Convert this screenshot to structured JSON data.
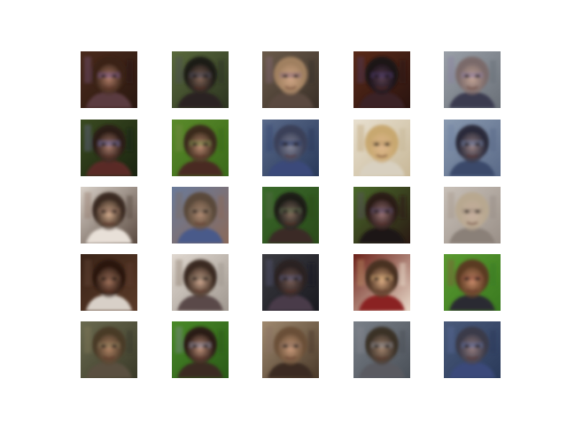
{
  "figure": {
    "background": "#ffffff",
    "grid": {
      "rows": 5,
      "cols": 5
    },
    "tiles": [
      {
        "bg": "#4a2a1c",
        "bg2": "#2a1810",
        "skin": "#b8826c",
        "hair": "#3a2418",
        "shirt": "#5a3a40",
        "accent": "#7a5a8a"
      },
      {
        "bg": "#5a6a3c",
        "bg2": "#2c3420",
        "skin": "#8a6a5a",
        "hair": "#1e1a18",
        "shirt": "#2a2420",
        "accent": "#4a4a5a"
      },
      {
        "bg": "#6a5a4a",
        "bg2": "#3a3028",
        "skin": "#d4a888",
        "hair": "#a08060",
        "shirt": "#5a4a40",
        "accent": "#8a6a7a"
      },
      {
        "bg": "#5a2a18",
        "bg2": "#2a1410",
        "skin": "#5a4050",
        "hair": "#1a1218",
        "shirt": "#3a2028",
        "accent": "#4a3a6a"
      },
      {
        "bg": "#9aa0a8",
        "bg2": "#6a7078",
        "skin": "#c8a898",
        "hair": "#7a6a6a",
        "shirt": "#3a3a50",
        "accent": "#8a7aa0"
      },
      {
        "bg": "#3a4a20",
        "bg2": "#1a2410",
        "skin": "#b08070",
        "hair": "#2a1a14",
        "shirt": "#5a2a28",
        "accent": "#6a6aa0"
      },
      {
        "bg": "#5a8a2a",
        "bg2": "#3a6a1a",
        "skin": "#c49078",
        "hair": "#3a2a1a",
        "shirt": "#4a2a20",
        "accent": "#7a8a4a"
      },
      {
        "bg": "#5a6a8a",
        "bg2": "#2a3a5a",
        "skin": "#8a8a9a",
        "hair": "#3a4058",
        "shirt": "#3a4a7a",
        "accent": "#2a3a6a"
      },
      {
        "bg": "#e8e0d0",
        "bg2": "#c8b898",
        "skin": "#e0b890",
        "hair": "#c8a870",
        "shirt": "#d8d0c0",
        "accent": "#b89868"
      },
      {
        "bg": "#8a9ab0",
        "bg2": "#5a6a88",
        "skin": "#a08888",
        "hair": "#2a2a3a",
        "shirt": "#3a4a6a",
        "accent": "#6a7aa0"
      },
      {
        "bg": "#d8d0c8",
        "bg2": "#5a4a40",
        "skin": "#e0b898",
        "hair": "#3a2a20",
        "shirt": "#e8e0d8",
        "accent": "#8a6a5a"
      },
      {
        "bg": "#6a7a9a",
        "bg2": "#8a6a5a",
        "skin": "#b89078",
        "hair": "#5a4a3a",
        "shirt": "#4a5a8a",
        "accent": "#7a6a5a"
      },
      {
        "bg": "#3a6a2a",
        "bg2": "#2a4a1a",
        "skin": "#8a7060",
        "hair": "#1a1a18",
        "shirt": "#3a2a28",
        "accent": "#5a6a4a"
      },
      {
        "bg": "#4a6a2a",
        "bg2": "#2a1a14",
        "skin": "#a07878",
        "hair": "#2a1a18",
        "shirt": "#1a1412",
        "accent": "#5a4a6a"
      },
      {
        "bg": "#c8c0b8",
        "bg2": "#9a9088",
        "skin": "#c8b0a0",
        "hair": "#b8a890",
        "shirt": "#8a8078",
        "accent": "#a09080"
      },
      {
        "bg": "#3a2418",
        "bg2": "#5a3a28",
        "skin": "#a87860",
        "hair": "#2a1810",
        "shirt": "#d8d0c8",
        "accent": "#6a4a3a"
      },
      {
        "bg": "#e0d8d0",
        "bg2": "#a09890",
        "skin": "#d8b098",
        "hair": "#3a2a20",
        "shirt": "#5a4a48",
        "accent": "#7a6a5a"
      },
      {
        "bg": "#3a3a40",
        "bg2": "#1a1a20",
        "skin": "#7a6058",
        "hair": "#2a2020",
        "shirt": "#4a3a4a",
        "accent": "#5a5a7a"
      },
      {
        "bg": "#6a2018",
        "bg2": "#e8d8c8",
        "skin": "#e0b088",
        "hair": "#4a3020",
        "shirt": "#8a2020",
        "accent": "#c8a070"
      },
      {
        "bg": "#5a9a30",
        "bg2": "#3a7a20",
        "skin": "#d09070",
        "hair": "#5a3a20",
        "shirt": "#2a2a30",
        "accent": "#8a5040"
      },
      {
        "bg": "#6a6a50",
        "bg2": "#3a3a28",
        "skin": "#b88868",
        "hair": "#4a3a28",
        "shirt": "#5a5040",
        "accent": "#8a7a5a"
      },
      {
        "bg": "#4a8a28",
        "bg2": "#2a5a18",
        "skin": "#c89880",
        "hair": "#2a1a14",
        "shirt": "#3a2a20",
        "accent": "#8a8aa0"
      },
      {
        "bg": "#a08a70",
        "bg2": "#4a3a2a",
        "skin": "#d0a080",
        "hair": "#6a5038",
        "shirt": "#3a2a20",
        "accent": "#8a7060"
      },
      {
        "bg": "#7a8088",
        "bg2": "#4a5058",
        "skin": "#a88870",
        "hair": "#3a3028",
        "shirt": "#5a5a60",
        "accent": "#8a8a90"
      },
      {
        "bg": "#4a5a7a",
        "bg2": "#2a3a5a",
        "skin": "#9a8080",
        "hair": "#3a3a48",
        "shirt": "#3a4a7a",
        "accent": "#5a6a9a"
      }
    ]
  }
}
